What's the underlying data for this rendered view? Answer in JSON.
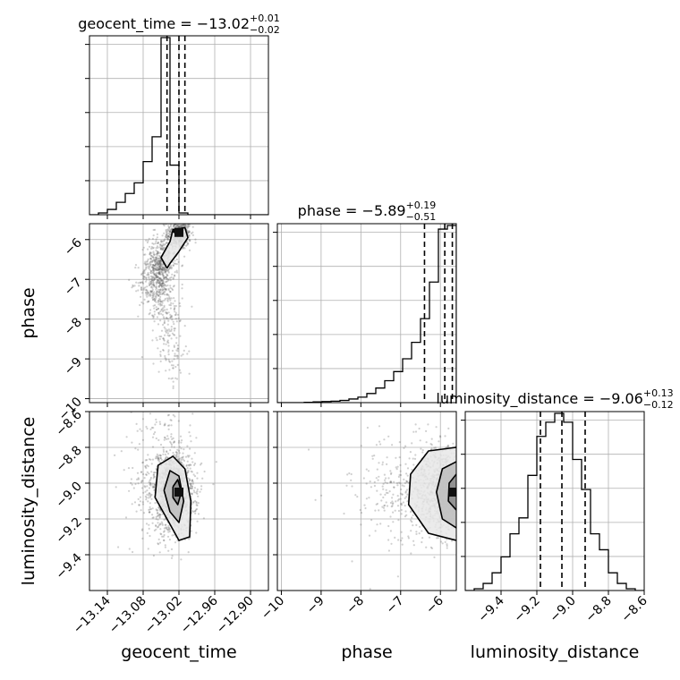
{
  "chart_data": {
    "type": "corner",
    "parameters": [
      "geocent_time",
      "phase",
      "luminosity_distance"
    ],
    "grid": true,
    "titles": [
      {
        "name": "geocent_time",
        "median": "−13.02",
        "plus": "+0.01",
        "minus": "−0.02"
      },
      {
        "name": "phase",
        "median": "−5.89",
        "plus": "+0.19",
        "minus": "−0.51"
      },
      {
        "name": "luminosity_distance",
        "median": "−9.06",
        "plus": "+0.13",
        "minus": "−0.12"
      }
    ],
    "ranges": {
      "geocent_time": [
        -13.17,
        -12.87
      ],
      "phase": [
        -10.1,
        -5.6
      ],
      "luminosity_distance": [
        -9.6,
        -8.6
      ]
    },
    "ticks": {
      "geocent_time": [
        {
          "v": -13.14,
          "label": "−13.14"
        },
        {
          "v": -13.08,
          "label": "−13.08"
        },
        {
          "v": -13.02,
          "label": "−13.02"
        },
        {
          "v": -12.96,
          "label": "−12.96"
        },
        {
          "v": -12.9,
          "label": "−12.90"
        }
      ],
      "phase": [
        {
          "v": -10,
          "label": "−10"
        },
        {
          "v": -9,
          "label": "−9"
        },
        {
          "v": -8,
          "label": "−8"
        },
        {
          "v": -7,
          "label": "−7"
        },
        {
          "v": -6,
          "label": "−6"
        }
      ],
      "phase_y": [
        {
          "v": -10,
          "label": "−10"
        },
        {
          "v": -9,
          "label": "−9"
        },
        {
          "v": -8,
          "label": "−8"
        },
        {
          "v": -7,
          "label": "−7"
        },
        {
          "v": -6,
          "label": "−6"
        }
      ],
      "luminosity_distance": [
        {
          "v": -9.4,
          "label": "−9.4"
        },
        {
          "v": -9.2,
          "label": "−9.2"
        },
        {
          "v": -9.0,
          "label": "−9.0"
        },
        {
          "v": -8.8,
          "label": "−8.8"
        },
        {
          "v": -8.6,
          "label": "−8.6"
        }
      ],
      "luminosity_distance_y": [
        {
          "v": -9.4,
          "label": "−9.4"
        },
        {
          "v": -9.2,
          "label": "−9.2"
        },
        {
          "v": -9.0,
          "label": "−9.0"
        },
        {
          "v": -8.8,
          "label": "−8.8"
        },
        {
          "v": -8.6,
          "label": "−8.6"
        }
      ]
    },
    "quantiles": {
      "geocent_time": [
        -13.04,
        -13.02,
        -13.01
      ],
      "phase": [
        -6.4,
        -5.89,
        -5.7
      ],
      "luminosity_distance": [
        -9.18,
        -9.06,
        -8.93
      ]
    },
    "histograms": {
      "geocent_time": {
        "bins": [
          -13.17,
          -13.155,
          -13.14,
          -13.125,
          -13.11,
          -13.095,
          -13.08,
          -13.065,
          -13.05,
          -13.035,
          -13.02,
          -13.005,
          -12.99,
          -12.975,
          -12.96,
          -12.945,
          -12.93,
          -12.915,
          -12.9,
          -12.885,
          -12.87
        ],
        "counts": [
          0,
          0.01,
          0.03,
          0.07,
          0.12,
          0.18,
          0.3,
          0.44,
          1.0,
          0.28,
          0.01,
          0,
          0,
          0,
          0,
          0,
          0,
          0,
          0,
          0
        ]
      },
      "phase": {
        "bins": [
          -10.1,
          -9.875,
          -9.65,
          -9.425,
          -9.2,
          -8.975,
          -8.75,
          -8.525,
          -8.3,
          -8.075,
          -7.85,
          -7.625,
          -7.4,
          -7.175,
          -6.95,
          -6.725,
          -6.5,
          -6.275,
          -6.05,
          -5.825,
          -5.6
        ],
        "counts": [
          0,
          0,
          0,
          0.002,
          0.004,
          0.006,
          0.008,
          0.012,
          0.02,
          0.03,
          0.05,
          0.08,
          0.12,
          0.17,
          0.24,
          0.33,
          0.46,
          0.66,
          0.95,
          0.97
        ]
      },
      "luminosity_distance": {
        "bins": [
          -9.6,
          -9.55,
          -9.5,
          -9.45,
          -9.4,
          -9.35,
          -9.3,
          -9.25,
          -9.2,
          -9.15,
          -9.1,
          -9.05,
          -9.0,
          -8.95,
          -8.9,
          -8.85,
          -8.8,
          -8.75,
          -8.7,
          -8.65,
          -8.6
        ],
        "counts": [
          0,
          0.01,
          0.04,
          0.1,
          0.19,
          0.32,
          0.41,
          0.65,
          0.87,
          0.95,
          1.0,
          0.95,
          0.74,
          0.57,
          0.32,
          0.23,
          0.1,
          0.04,
          0.01,
          0
        ]
      }
    },
    "density": [
      {
        "x": "geocent_time",
        "y": "phase",
        "points": [
          {
            "x": -13.02,
            "y": -5.85,
            "sx": 0.01,
            "sy": 0.2,
            "w": 0.35
          },
          {
            "x": -13.05,
            "y": -6.6,
            "sx": 0.012,
            "sy": 0.35,
            "w": 0.3
          },
          {
            "x": -13.06,
            "y": -7.1,
            "sx": 0.014,
            "sy": 0.35,
            "w": 0.2
          },
          {
            "x": -13.04,
            "y": -7.9,
            "sx": 0.013,
            "sy": 0.5,
            "w": 0.1
          },
          {
            "x": -13.03,
            "y": -8.8,
            "sx": 0.012,
            "sy": 0.45,
            "w": 0.05
          }
        ],
        "contours": [
          [
            [
              -13.04,
              -6.72
            ],
            [
              -13.05,
              -6.45
            ],
            [
              -13.035,
              -6.05
            ],
            [
              -13.03,
              -5.75
            ],
            [
              -13.01,
              -5.7
            ],
            [
              -13.005,
              -5.95
            ],
            [
              -13.02,
              -6.3
            ],
            [
              -13.035,
              -6.6
            ],
            [
              -13.04,
              -6.72
            ]
          ],
          [
            [
              -13.03,
              -5.8
            ],
            [
              -13.022,
              -5.72
            ],
            [
              -13.015,
              -5.78
            ],
            [
              -13.022,
              -5.86
            ],
            [
              -13.03,
              -5.8
            ]
          ]
        ],
        "peak": {
          "x": -13.02,
          "y": -5.82
        }
      },
      {
        "x": "geocent_time",
        "y": "luminosity_distance",
        "points": [
          {
            "x": -13.03,
            "y": -9.05,
            "sx": 0.018,
            "sy": 0.12,
            "w": 0.8
          },
          {
            "x": -13.05,
            "y": -8.95,
            "sx": 0.03,
            "sy": 0.2,
            "w": 0.2
          }
        ],
        "contours": [
          [
            [
              -13.06,
              -9.08
            ],
            [
              -13.055,
              -8.9
            ],
            [
              -13.03,
              -8.85
            ],
            [
              -13.01,
              -8.92
            ],
            [
              -13.0,
              -9.1
            ],
            [
              -13.002,
              -9.3
            ],
            [
              -13.02,
              -9.32
            ],
            [
              -13.04,
              -9.2
            ],
            [
              -13.06,
              -9.08
            ]
          ],
          [
            [
              -13.045,
              -9.04
            ],
            [
              -13.035,
              -8.93
            ],
            [
              -13.02,
              -8.96
            ],
            [
              -13.012,
              -9.1
            ],
            [
              -13.02,
              -9.22
            ],
            [
              -13.035,
              -9.16
            ],
            [
              -13.045,
              -9.04
            ]
          ],
          [
            [
              -13.03,
              -9.02
            ],
            [
              -13.022,
              -8.98
            ],
            [
              -13.016,
              -9.05
            ],
            [
              -13.022,
              -9.12
            ],
            [
              -13.03,
              -9.08
            ],
            [
              -13.03,
              -9.02
            ]
          ]
        ],
        "peak": {
          "x": -13.02,
          "y": -9.05
        }
      },
      {
        "x": "phase",
        "y": "luminosity_distance",
        "points": [
          {
            "x": -5.85,
            "y": -9.05,
            "sx": 0.35,
            "sy": 0.12,
            "w": 0.7
          },
          {
            "x": -6.6,
            "y": -9.05,
            "sx": 0.8,
            "sy": 0.16,
            "w": 0.3
          }
        ],
        "contours": [
          [
            [
              -5.6,
              -8.8
            ],
            [
              -6.3,
              -8.82
            ],
            [
              -6.75,
              -8.95
            ],
            [
              -6.8,
              -9.12
            ],
            [
              -6.3,
              -9.28
            ],
            [
              -5.6,
              -9.32
            ]
          ],
          [
            [
              -5.6,
              -8.88
            ],
            [
              -5.95,
              -8.92
            ],
            [
              -6.1,
              -9.05
            ],
            [
              -5.95,
              -9.2
            ],
            [
              -5.6,
              -9.25
            ]
          ],
          [
            [
              -5.6,
              -8.95
            ],
            [
              -5.78,
              -9.0
            ],
            [
              -5.8,
              -9.1
            ],
            [
              -5.6,
              -9.15
            ]
          ]
        ],
        "peak": {
          "x": -5.68,
          "y": -9.05
        }
      }
    ]
  }
}
